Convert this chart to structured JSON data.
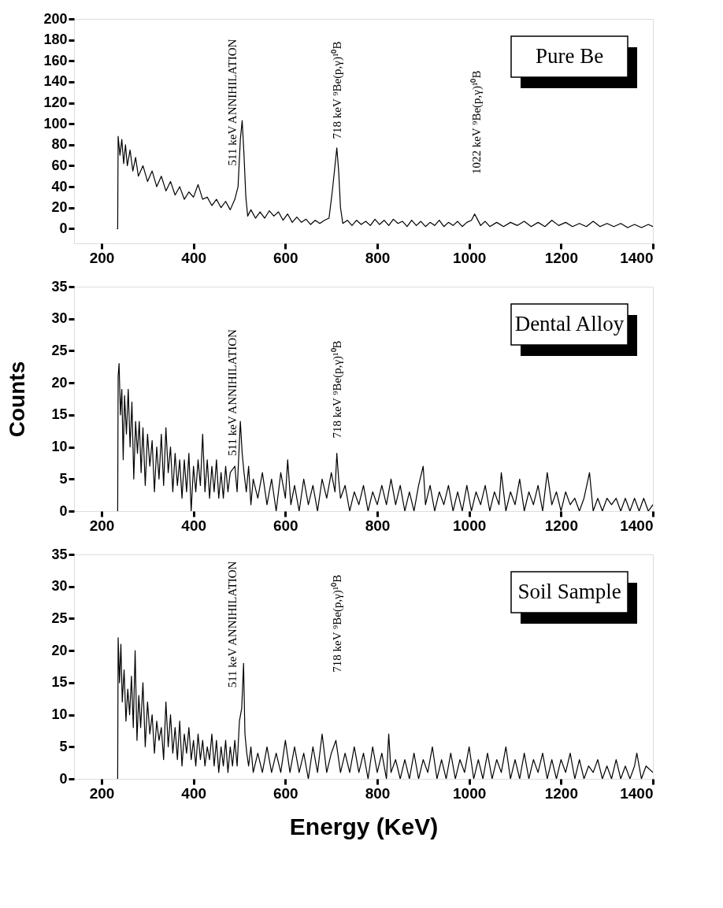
{
  "chart_data": [
    {
      "type": "line",
      "title": "Pure Be",
      "xlim": [
        140,
        1400
      ],
      "xticks": [
        200,
        400,
        600,
        800,
        1000,
        1200,
        1400
      ],
      "ylim": [
        -14,
        200
      ],
      "yticks": [
        0,
        20,
        40,
        60,
        80,
        100,
        120,
        140,
        160,
        180,
        200
      ],
      "x": [
        234,
        235,
        236,
        240,
        244,
        248,
        252,
        256,
        262,
        268,
        274,
        280,
        290,
        300,
        310,
        320,
        330,
        340,
        350,
        360,
        370,
        380,
        390,
        400,
        410,
        420,
        430,
        440,
        450,
        460,
        470,
        480,
        490,
        497,
        502,
        506,
        510,
        514,
        518,
        525,
        535,
        545,
        555,
        565,
        575,
        585,
        595,
        605,
        615,
        625,
        635,
        645,
        655,
        665,
        675,
        685,
        695,
        702,
        708,
        712,
        716,
        720,
        725,
        735,
        745,
        755,
        765,
        775,
        785,
        795,
        805,
        815,
        825,
        835,
        845,
        855,
        865,
        875,
        885,
        895,
        905,
        915,
        925,
        935,
        945,
        955,
        965,
        975,
        985,
        995,
        1005,
        1012,
        1018,
        1025,
        1035,
        1045,
        1060,
        1075,
        1090,
        1105,
        1120,
        1135,
        1150,
        1165,
        1180,
        1195,
        1210,
        1225,
        1240,
        1255,
        1270,
        1285,
        1300,
        1315,
        1330,
        1345,
        1360,
        1375,
        1390,
        1400
      ],
      "series": [
        {
          "color": "#000000",
          "values": [
            0,
            0,
            88,
            70,
            85,
            62,
            80,
            60,
            75,
            55,
            68,
            50,
            60,
            45,
            55,
            40,
            50,
            36,
            45,
            32,
            40,
            28,
            35,
            30,
            42,
            28,
            30,
            22,
            28,
            20,
            26,
            18,
            28,
            40,
            85,
            103,
            70,
            30,
            12,
            18,
            10,
            16,
            10,
            17,
            12,
            16,
            8,
            14,
            6,
            11,
            6,
            9,
            4,
            8,
            5,
            8,
            10,
            35,
            60,
            77,
            55,
            20,
            5,
            8,
            3,
            8,
            4,
            7,
            3,
            9,
            4,
            8,
            3,
            9,
            5,
            7,
            2,
            8,
            3,
            7,
            2,
            6,
            3,
            8,
            2,
            6,
            3,
            7,
            2,
            6,
            8,
            14,
            9,
            3,
            7,
            2,
            6,
            2,
            6,
            3,
            7,
            2,
            6,
            2,
            8,
            3,
            6,
            2,
            5,
            2,
            7,
            2,
            5,
            2,
            5,
            1,
            4,
            1,
            4,
            2
          ]
        }
      ],
      "annotations": [
        "511 keV ANNIHILATION",
        "718 keV ⁹Be(p,γ)¹⁰B",
        "1022 keV ⁹Be(p,γ)¹⁰B"
      ]
    },
    {
      "type": "line",
      "title": "Dental Alloy",
      "ylabel": "Counts",
      "xlim": [
        140,
        1400
      ],
      "xticks": [
        200,
        400,
        600,
        800,
        1000,
        1200,
        1400
      ],
      "ylim": [
        0,
        35
      ],
      "yticks": [
        0,
        5,
        10,
        15,
        20,
        25,
        30,
        35
      ],
      "x": [
        234,
        235,
        236,
        238,
        241,
        244,
        247,
        250,
        254,
        258,
        262,
        266,
        270,
        274,
        278,
        282,
        286,
        290,
        295,
        300,
        305,
        310,
        315,
        320,
        325,
        330,
        335,
        340,
        345,
        350,
        355,
        360,
        365,
        370,
        375,
        380,
        385,
        390,
        395,
        400,
        405,
        410,
        415,
        420,
        425,
        430,
        435,
        440,
        445,
        450,
        455,
        460,
        465,
        470,
        475,
        480,
        490,
        495,
        502,
        506,
        510,
        515,
        520,
        525,
        530,
        540,
        550,
        560,
        570,
        580,
        590,
        600,
        605,
        612,
        620,
        630,
        640,
        650,
        660,
        670,
        680,
        690,
        700,
        708,
        712,
        716,
        720,
        730,
        740,
        750,
        760,
        770,
        780,
        790,
        800,
        810,
        820,
        830,
        840,
        850,
        860,
        870,
        880,
        890,
        900,
        905,
        915,
        925,
        935,
        945,
        955,
        965,
        975,
        985,
        995,
        1005,
        1015,
        1025,
        1035,
        1045,
        1055,
        1065,
        1070,
        1080,
        1090,
        1100,
        1110,
        1120,
        1130,
        1140,
        1150,
        1160,
        1170,
        1180,
        1190,
        1200,
        1210,
        1220,
        1230,
        1240,
        1250,
        1262,
        1270,
        1280,
        1290,
        1300,
        1310,
        1320,
        1330,
        1340,
        1350,
        1360,
        1370,
        1380,
        1390,
        1400
      ],
      "series": [
        {
          "color": "#000000",
          "values": [
            0,
            0,
            21,
            23,
            15,
            19,
            8,
            18,
            12,
            19,
            10,
            17,
            5,
            14,
            9,
            14,
            6,
            13,
            4,
            12,
            7,
            11,
            3,
            10,
            5,
            12,
            4,
            13,
            6,
            10,
            3,
            9,
            4,
            8,
            2,
            8,
            3,
            9,
            0,
            7,
            3,
            8,
            4,
            12,
            3,
            8,
            2,
            7,
            3,
            8,
            2,
            6,
            2,
            7,
            3,
            6,
            7,
            3,
            14,
            9,
            6,
            3,
            7,
            1,
            5,
            2,
            6,
            1,
            5,
            0,
            6,
            2,
            8,
            1,
            4,
            0,
            5,
            1,
            4,
            0,
            5,
            2,
            6,
            3,
            9,
            5,
            2,
            4,
            0,
            3,
            1,
            4,
            0,
            3,
            1,
            4,
            1,
            5,
            1,
            4,
            0,
            3,
            0,
            4,
            7,
            1,
            4,
            0,
            3,
            1,
            4,
            0,
            3,
            0,
            4,
            0,
            3,
            1,
            4,
            0,
            3,
            1,
            6,
            0,
            3,
            1,
            5,
            0,
            3,
            1,
            4,
            0,
            6,
            1,
            3,
            0,
            3,
            1,
            2,
            0,
            2,
            6,
            0,
            2,
            0,
            2,
            1,
            2,
            0,
            2,
            0,
            2,
            0,
            2,
            0,
            1
          ]
        }
      ],
      "annotations": [
        "511 keV ANNIHILATION",
        "718 keV ⁹Be(p,γ)¹⁰B"
      ]
    },
    {
      "type": "line",
      "title": "Soil Sample",
      "xlabel": "Energy (KeV)",
      "xlim": [
        140,
        1400
      ],
      "xticks": [
        200,
        400,
        600,
        800,
        1000,
        1200,
        1400
      ],
      "ylim": [
        0,
        35
      ],
      "yticks": [
        0,
        5,
        10,
        15,
        20,
        25,
        30,
        35
      ],
      "x": [
        234,
        235,
        236,
        239,
        242,
        245,
        249,
        253,
        257,
        261,
        265,
        269,
        273,
        277,
        281,
        285,
        290,
        295,
        300,
        305,
        310,
        315,
        320,
        325,
        330,
        335,
        340,
        345,
        350,
        355,
        360,
        365,
        370,
        375,
        380,
        385,
        390,
        395,
        400,
        405,
        410,
        415,
        420,
        425,
        430,
        435,
        440,
        445,
        450,
        455,
        460,
        465,
        470,
        475,
        480,
        485,
        490,
        495,
        500,
        505,
        509,
        512,
        516,
        520,
        525,
        530,
        540,
        550,
        560,
        570,
        580,
        590,
        600,
        610,
        620,
        630,
        640,
        650,
        660,
        670,
        680,
        690,
        700,
        710,
        720,
        730,
        740,
        750,
        760,
        770,
        780,
        790,
        800,
        810,
        820,
        825,
        830,
        840,
        850,
        860,
        870,
        880,
        890,
        900,
        910,
        920,
        930,
        940,
        950,
        960,
        970,
        980,
        990,
        1000,
        1010,
        1020,
        1030,
        1040,
        1050,
        1060,
        1070,
        1080,
        1090,
        1100,
        1110,
        1120,
        1130,
        1140,
        1150,
        1160,
        1170,
        1180,
        1190,
        1200,
        1210,
        1220,
        1230,
        1240,
        1250,
        1260,
        1270,
        1280,
        1290,
        1300,
        1310,
        1320,
        1330,
        1340,
        1350,
        1360,
        1365,
        1375,
        1385,
        1400
      ],
      "series": [
        {
          "color": "#000000",
          "values": [
            0,
            0,
            22,
            15,
            21,
            12,
            17,
            9,
            14,
            10,
            16,
            8,
            20,
            6,
            13,
            8,
            15,
            5,
            12,
            7,
            10,
            4,
            9,
            6,
            8,
            3,
            12,
            5,
            10,
            4,
            8,
            3,
            9,
            2,
            7,
            4,
            8,
            3,
            6,
            2,
            7,
            3,
            6,
            2,
            5,
            3,
            7,
            2,
            6,
            1,
            5,
            2,
            6,
            1,
            5,
            2,
            6,
            2,
            9,
            11,
            18,
            7,
            4,
            2,
            5,
            1,
            4,
            1,
            5,
            1,
            4,
            1,
            6,
            1,
            5,
            1,
            4,
            0,
            5,
            1,
            7,
            1,
            4,
            6,
            1,
            4,
            1,
            5,
            1,
            4,
            0,
            5,
            1,
            4,
            0,
            7,
            1,
            3,
            0,
            3,
            0,
            4,
            0,
            3,
            1,
            5,
            0,
            3,
            0,
            4,
            0,
            3,
            1,
            5,
            0,
            3,
            0,
            4,
            0,
            3,
            1,
            5,
            0,
            3,
            0,
            4,
            0,
            3,
            1,
            4,
            0,
            3,
            0,
            3,
            1,
            4,
            0,
            3,
            0,
            2,
            1,
            3,
            0,
            2,
            0,
            3,
            0,
            2,
            0,
            2,
            4,
            0,
            2,
            1
          ]
        }
      ],
      "annotations": [
        "511 keV ANNIHILATION",
        "718 keV ⁹Be(p,γ)¹⁰B"
      ]
    }
  ]
}
